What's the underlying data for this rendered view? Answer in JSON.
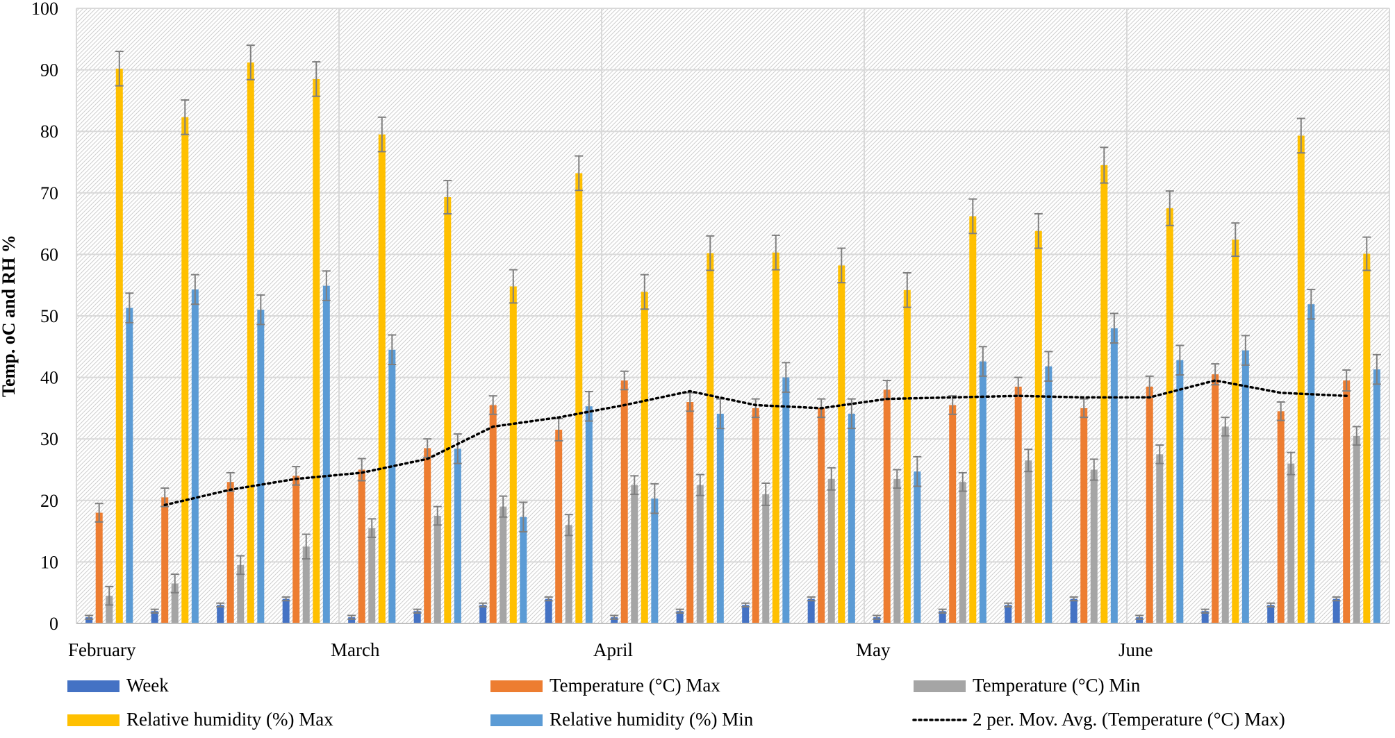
{
  "chart_data": {
    "type": "bar",
    "title": "",
    "xlabel": "",
    "ylabel": "Temp. oC  and RH %",
    "ylim": [
      0,
      100
    ],
    "yticks": [
      0,
      10,
      20,
      30,
      40,
      50,
      60,
      70,
      80,
      90,
      100
    ],
    "grid": true,
    "legend_position": "bottom",
    "months": [
      "February",
      "March",
      "April",
      "May",
      "June"
    ],
    "weeks_per_month": 4,
    "series": [
      {
        "name": "Week",
        "color": "#4472C4",
        "values": [
          1,
          2,
          3,
          4,
          1,
          2,
          3,
          4,
          1,
          2,
          3,
          4,
          1,
          2,
          3,
          4,
          1,
          2,
          3,
          4
        ],
        "error": [
          0.3,
          0.3,
          0.3,
          0.3,
          0.3,
          0.3,
          0.3,
          0.3,
          0.3,
          0.3,
          0.3,
          0.3,
          0.3,
          0.3,
          0.3,
          0.3,
          0.3,
          0.3,
          0.3,
          0.3
        ]
      },
      {
        "name": "Temperature (°C) Max",
        "color": "#ED7D31",
        "values": [
          18,
          20.5,
          23,
          24,
          25,
          28.5,
          35.5,
          31.5,
          39.5,
          36,
          35,
          35,
          38,
          35.5,
          38.5,
          35,
          38.5,
          40.5,
          34.5,
          39.5
        ],
        "error": [
          1.5,
          1.5,
          1.5,
          1.5,
          1.8,
          1.5,
          1.5,
          1.8,
          1.5,
          1.5,
          1.5,
          1.5,
          1.5,
          1.5,
          1.5,
          1.5,
          1.7,
          1.7,
          1.5,
          1.7
        ]
      },
      {
        "name": "Temperature (°C) Min",
        "color": "#A5A5A5",
        "values": [
          4.5,
          6.5,
          9.5,
          12.5,
          15.5,
          17.5,
          19,
          16,
          22.5,
          22.5,
          21,
          23.5,
          23.5,
          23,
          26.5,
          25,
          27.5,
          32,
          26,
          30.5
        ],
        "error": [
          1.5,
          1.5,
          1.5,
          2,
          1.5,
          1.5,
          1.7,
          1.7,
          1.5,
          1.7,
          1.8,
          1.8,
          1.5,
          1.5,
          1.8,
          1.7,
          1.5,
          1.5,
          1.8,
          1.5
        ]
      },
      {
        "name": "Relative humidity (%) Max",
        "color": "#FFC000",
        "values": [
          90.2,
          82.3,
          91.2,
          88.5,
          79.5,
          69.3,
          54.8,
          73.2,
          53.9,
          60.2,
          60.3,
          58.2,
          54.2,
          66.2,
          63.8,
          74.5,
          67.5,
          62.4,
          79.3,
          60.1
        ],
        "error": [
          2.8,
          2.8,
          2.8,
          2.8,
          2.8,
          2.7,
          2.7,
          2.8,
          2.8,
          2.8,
          2.8,
          2.8,
          2.8,
          2.8,
          2.8,
          2.9,
          2.8,
          2.7,
          2.8,
          2.7
        ]
      },
      {
        "name": "Relative humidity (%) Min",
        "color": "#5B9BD5",
        "values": [
          51.3,
          54.3,
          51,
          54.9,
          44.5,
          28.4,
          17.3,
          35.3,
          20.3,
          34.1,
          40,
          34.1,
          24.7,
          42.6,
          41.8,
          48,
          42.8,
          44.4,
          51.9,
          41.3
        ],
        "error": [
          2.4,
          2.4,
          2.4,
          2.4,
          2.4,
          2.4,
          2.4,
          2.4,
          2.4,
          2.4,
          2.4,
          2.4,
          2.4,
          2.4,
          2.4,
          2.4,
          2.4,
          2.4,
          2.4,
          2.4
        ]
      }
    ],
    "moving_average": {
      "name": "2 per. Mov. Avg. (Temperature (°C) Max)",
      "color": "#000000",
      "period": 2,
      "source_series": "Temperature (°C) Max"
    }
  }
}
